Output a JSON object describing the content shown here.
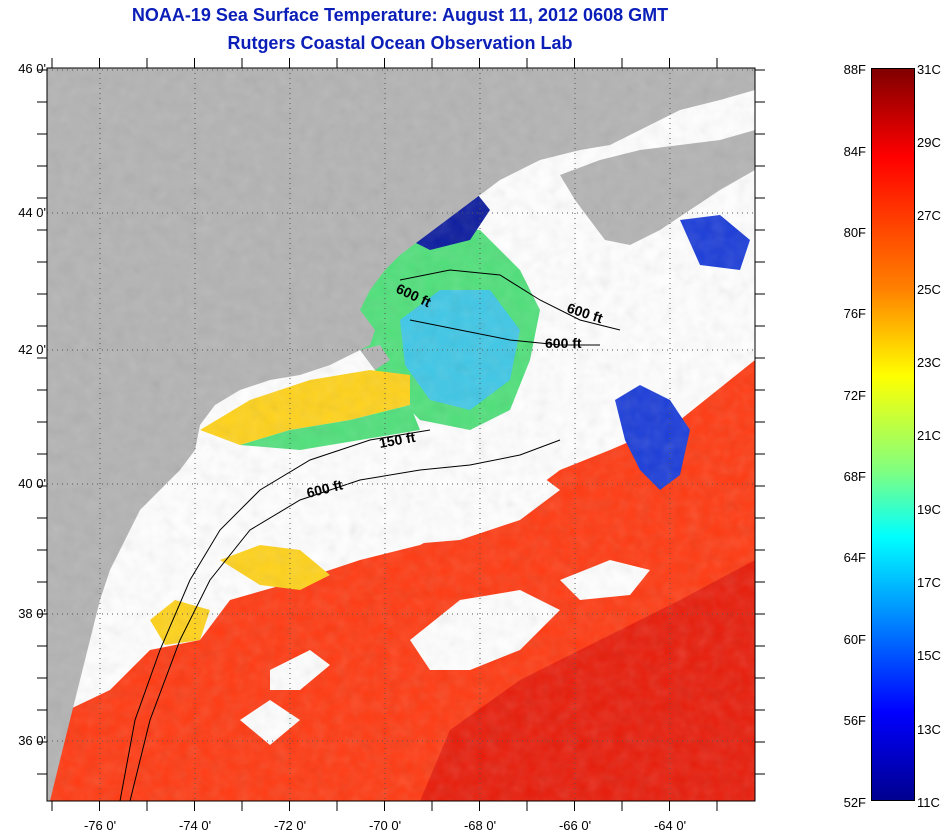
{
  "header": {
    "title_line1": "NOAA-19 Sea Surface Temperature:  August 11, 2012 0608 GMT",
    "title_line2": "Rutgers Coastal Ocean Observation Lab"
  },
  "map": {
    "lat_labels": [
      "46 0'",
      "44 0'",
      "42 0'",
      "40 0'",
      "38 0'",
      "36 0'"
    ],
    "lon_labels": [
      "-76 0'",
      "-74 0'",
      "-72 0'",
      "-70 0'",
      "-68 0'",
      "-66 0'",
      "-64 0'"
    ],
    "lat_range": [
      35,
      46
    ],
    "lon_range": [
      -77.5,
      -62.5
    ],
    "contour_labels": [
      "600 ft",
      "600 ft",
      "600 ft",
      "150 ft",
      "600 ft"
    ],
    "colors": {
      "land": "#b3b3b3",
      "cloud": "#ffffff",
      "warm": "#ff3a12",
      "hot": "#e81c0a",
      "mild": "#ffd21a",
      "cool": "#3ec7e6",
      "cold": "#1a3cd9",
      "verycold": "#0a1a9e",
      "green": "#4fe07a"
    }
  },
  "colorbar": {
    "fahrenheit_labels": [
      "88F",
      "84F",
      "80F",
      "76F",
      "72F",
      "68F",
      "64F",
      "60F",
      "56F",
      "52F"
    ],
    "celsius_labels": [
      "31C",
      "29C",
      "27C",
      "25C",
      "23C",
      "21C",
      "19C",
      "17C",
      "15C",
      "13C",
      "11C"
    ],
    "min_c": 11,
    "max_c": 31
  }
}
